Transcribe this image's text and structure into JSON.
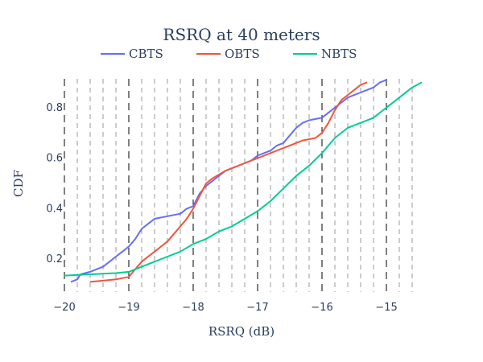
{
  "chart_data": {
    "type": "line",
    "title": "RSRQ at 40 meters",
    "xlabel": "RSRQ (dB)",
    "ylabel": "CDF",
    "xlim": [
      -20,
      -14.5
    ],
    "ylim": [
      0.07,
      0.93
    ],
    "x_ticks": [
      -20,
      -19,
      -18,
      -17,
      -16,
      -15
    ],
    "y_ticks": [
      0.2,
      0.4,
      0.6,
      0.8
    ],
    "legend_position": "top-center",
    "grid": "dashed vertical lines: black at integer dB, grey at 0.2 dB steps",
    "series": [
      {
        "name": "CBTS",
        "color": "#636efa",
        "x": [
          -19.9,
          -19.8,
          -19.75,
          -19.6,
          -19.5,
          -19.4,
          -19.3,
          -19.2,
          -19.1,
          -19.0,
          -18.9,
          -18.8,
          -18.7,
          -18.6,
          -18.4,
          -18.2,
          -18.1,
          -18.0,
          -17.9,
          -17.8,
          -17.7,
          -17.6,
          -17.5,
          -17.3,
          -17.1,
          -17.0,
          -16.9,
          -16.8,
          -16.7,
          -16.6,
          -16.5,
          -16.4,
          -16.3,
          -16.2,
          -16.1,
          -16.0,
          -15.95,
          -15.9,
          -15.8,
          -15.7,
          -15.6,
          -15.5,
          -15.4,
          -15.3,
          -15.2,
          -15.1,
          -15.0
        ],
        "y": [
          0.11,
          0.12,
          0.14,
          0.15,
          0.16,
          0.17,
          0.19,
          0.21,
          0.23,
          0.25,
          0.28,
          0.32,
          0.34,
          0.36,
          0.37,
          0.38,
          0.4,
          0.41,
          0.46,
          0.49,
          0.51,
          0.53,
          0.55,
          0.57,
          0.59,
          0.61,
          0.62,
          0.63,
          0.65,
          0.66,
          0.69,
          0.72,
          0.74,
          0.75,
          0.755,
          0.76,
          0.77,
          0.78,
          0.8,
          0.82,
          0.84,
          0.85,
          0.86,
          0.87,
          0.88,
          0.9,
          0.91
        ]
      },
      {
        "name": "OBTS",
        "color": "#ef553b",
        "x": [
          -19.6,
          -19.4,
          -19.2,
          -19.0,
          -18.9,
          -18.8,
          -18.7,
          -18.6,
          -18.5,
          -18.4,
          -18.3,
          -18.2,
          -18.1,
          -18.0,
          -17.9,
          -17.8,
          -17.7,
          -17.5,
          -17.3,
          -17.1,
          -16.9,
          -16.7,
          -16.5,
          -16.3,
          -16.1,
          -16.0,
          -15.9,
          -15.8,
          -15.7,
          -15.6,
          -15.5,
          -15.4,
          -15.3
        ],
        "y": [
          0.11,
          0.115,
          0.12,
          0.13,
          0.16,
          0.19,
          0.21,
          0.23,
          0.25,
          0.27,
          0.3,
          0.33,
          0.36,
          0.4,
          0.45,
          0.5,
          0.52,
          0.55,
          0.57,
          0.59,
          0.61,
          0.63,
          0.65,
          0.67,
          0.68,
          0.7,
          0.74,
          0.79,
          0.83,
          0.85,
          0.87,
          0.89,
          0.9
        ]
      },
      {
        "name": "NBTS",
        "color": "#00cc96",
        "x": [
          -20.0,
          -19.6,
          -19.2,
          -19.0,
          -18.8,
          -18.6,
          -18.4,
          -18.2,
          -18.0,
          -17.8,
          -17.6,
          -17.4,
          -17.2,
          -17.0,
          -16.8,
          -16.6,
          -16.4,
          -16.2,
          -16.0,
          -15.8,
          -15.6,
          -15.4,
          -15.2,
          -15.0,
          -14.8,
          -14.6,
          -14.45
        ],
        "y": [
          0.135,
          0.14,
          0.145,
          0.15,
          0.17,
          0.19,
          0.21,
          0.23,
          0.26,
          0.28,
          0.31,
          0.33,
          0.36,
          0.39,
          0.43,
          0.48,
          0.53,
          0.57,
          0.62,
          0.68,
          0.72,
          0.74,
          0.76,
          0.8,
          0.84,
          0.88,
          0.9
        ]
      }
    ]
  }
}
